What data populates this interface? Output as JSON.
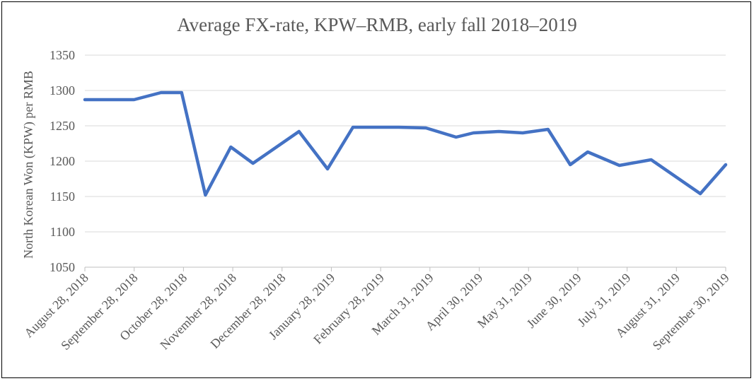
{
  "chart_data": {
    "type": "line",
    "title": "Average FX-rate, KPW–RMB, early fall 2018–2019",
    "xlabel": "",
    "ylabel": "North Korean Won (KPW) per RMB",
    "ylim": [
      1050,
      1350
    ],
    "yticks": [
      1050,
      1100,
      1150,
      1200,
      1250,
      1300,
      1350
    ],
    "grid": true,
    "legend": "none",
    "color": "#4472c4",
    "xticks": [
      "August 28, 2018",
      "September 28, 2018",
      "October 28, 2018",
      "November 28, 2018",
      "December 28, 2018",
      "January 28, 2019",
      "February 28, 2019",
      "March 31, 2019",
      "April 30, 2019",
      "May 31, 2019",
      "June 30, 2019",
      "July 31, 2019",
      "August 31, 2019",
      "September 30, 2019"
    ],
    "series": [
      {
        "x": [
          "2018-08-28",
          "2018-09-28",
          "2018-10-15",
          "2018-10-28",
          "2018-11-12",
          "2018-11-28",
          "2018-12-12",
          "2019-01-10",
          "2019-01-28",
          "2019-02-13",
          "2019-03-14",
          "2019-03-31",
          "2019-04-19",
          "2019-04-30",
          "2019-05-16",
          "2019-05-31",
          "2019-06-16",
          "2019-06-30",
          "2019-07-11",
          "2019-07-31",
          "2019-08-20",
          "2019-09-20",
          "2019-10-06"
        ],
        "values": [
          1287,
          1287,
          1297,
          1297,
          1152,
          1220,
          1197,
          1242,
          1189,
          1248,
          1248,
          1247,
          1234,
          1240,
          1242,
          1240,
          1245,
          1195,
          1213,
          1194,
          1202,
          1154,
          1195
        ]
      }
    ]
  }
}
